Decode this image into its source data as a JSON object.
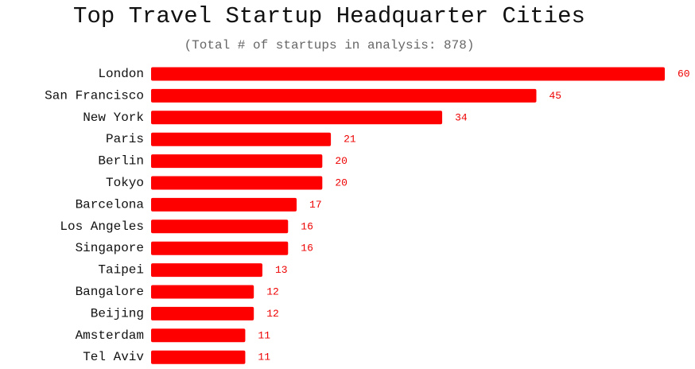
{
  "title": "Top Travel Startup Headquarter Cities",
  "subtitle": "(Total # of startups in analysis: 878)",
  "colors": {
    "bar": "#ff0000",
    "value_label": "#ee0000"
  },
  "chart_data": {
    "type": "bar",
    "orientation": "horizontal",
    "title": "Top Travel Startup Headquarter Cities",
    "subtitle": "(Total # of startups in analysis: 878)",
    "categories": [
      "London",
      "San Francisco",
      "New York",
      "Paris",
      "Berlin",
      "Tokyo",
      "Barcelona",
      "Los Angeles",
      "Singapore",
      "Taipei",
      "Bangalore",
      "Beijing",
      "Amsterdam",
      "Tel Aviv"
    ],
    "values": [
      60,
      45,
      34,
      21,
      20,
      20,
      17,
      16,
      16,
      13,
      12,
      12,
      11,
      11
    ],
    "xlim": [
      0,
      60
    ],
    "grid": false,
    "legend": "none",
    "data_labels": true
  }
}
